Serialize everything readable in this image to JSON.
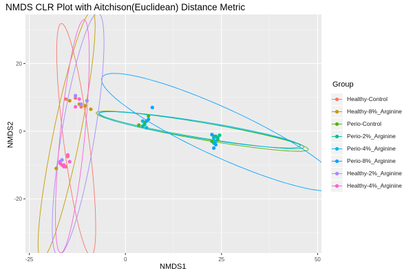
{
  "chart_data": {
    "type": "scatter",
    "title": "NMDS CLR Plot with Aitchison(Euclidean) Distance Metric",
    "xlabel": "NMDS1",
    "ylabel": "NMDS2",
    "xlim": [
      -26,
      51
    ],
    "ylim": [
      -36,
      34.5
    ],
    "xticks": [
      -25,
      0,
      25,
      50
    ],
    "yticks": [
      -20,
      0,
      20
    ],
    "grid": true,
    "legend": {
      "title": "Group",
      "placement": "right"
    },
    "series": [
      {
        "name": "Healthy-Control",
        "color": "#F8766D",
        "points": [
          [
            -15.5,
            9.5
          ],
          [
            -13,
            9.8
          ],
          [
            -11.5,
            7.2
          ],
          [
            -16.5,
            -10
          ],
          [
            -15,
            -7.5
          ],
          [
            -15.5,
            -10.5
          ]
        ],
        "ellipse": {
          "cx": -12.8,
          "cy": -2.5,
          "rx": 30.5,
          "ry": 3.3,
          "angle_deg": 97.3
        }
      },
      {
        "name": "Healthy-8%_Arginine",
        "color": "#C49A00",
        "points": [
          [
            -18,
            -11
          ],
          [
            -12,
            8
          ],
          [
            -10.5,
            7.5
          ],
          [
            -14.5,
            9
          ],
          [
            -9,
            6.5
          ]
        ],
        "ellipse": {
          "cx": -15.3,
          "cy": -1.2,
          "rx": 33,
          "ry": 3.5,
          "angle_deg": 78.5
        }
      },
      {
        "name": "Perio-Control",
        "color": "#53B400",
        "points": [
          [
            6,
            4.5
          ],
          [
            3.5,
            1.8
          ],
          [
            5,
            2.5
          ],
          [
            23,
            -1.5
          ],
          [
            24,
            -2.5
          ],
          [
            22.5,
            -3
          ]
        ],
        "ellipse": {
          "cx": 20,
          "cy": 0,
          "rx": 28,
          "ry": 2.2,
          "angle_deg": -9.8
        }
      },
      {
        "name": "Perio-2%_Arginine",
        "color": "#00C094",
        "points": [
          [
            4.5,
            1.5
          ],
          [
            5,
            2
          ],
          [
            23.5,
            -1.5
          ],
          [
            24,
            -2
          ],
          [
            23,
            -3.5
          ],
          [
            24.5,
            -1.2
          ]
        ],
        "ellipse": {
          "cx": 19.8,
          "cy": 0.3,
          "rx": 27,
          "ry": 2,
          "angle_deg": -9.4
        }
      },
      {
        "name": "Perio-4%_Arginine",
        "color": "#00B6EB",
        "points": [
          [
            4.5,
            3
          ],
          [
            5.5,
            1
          ],
          [
            23,
            -2
          ],
          [
            23.5,
            -3
          ]
        ],
        "ellipse": {
          "cx": 19.3,
          "cy": 0.4,
          "rx": 26.5,
          "ry": 2.2,
          "angle_deg": -9.1
        }
      },
      {
        "name": "Perio-8%_Arginine",
        "color": "#06A4FF",
        "points": [
          [
            7,
            7
          ],
          [
            5.5,
            3
          ],
          [
            6,
            3.5
          ],
          [
            23,
            -5
          ],
          [
            23.5,
            -4
          ],
          [
            22.5,
            -1
          ]
        ],
        "ellipse": {
          "cx": 24.8,
          "cy": -0.3,
          "rx": 34,
          "ry": 6.3,
          "angle_deg": -24.7
        }
      },
      {
        "name": "Healthy-2%_Arginine",
        "color": "#A58AFF",
        "points": [
          [
            -13,
            10.5
          ],
          [
            -11.5,
            8
          ],
          [
            -10,
            9
          ],
          [
            -17,
            -9
          ],
          [
            -16.5,
            -8.5
          ]
        ],
        "ellipse": {
          "cx": -12.3,
          "cy": -1,
          "rx": 32,
          "ry": 4.3,
          "angle_deg": 80.6
        }
      },
      {
        "name": "Healthy-4%_Arginine",
        "color": "#FB61D7",
        "points": [
          [
            -17,
            -9.5
          ],
          [
            -16,
            -10
          ],
          [
            -15,
            -7
          ],
          [
            -14.5,
            -9
          ],
          [
            -16,
            -10.5
          ],
          [
            -13,
            7.2
          ],
          [
            -12,
            9.5
          ]
        ],
        "ellipse": {
          "cx": -13.8,
          "cy": -1.5,
          "rx": 30.5,
          "ry": 3.2,
          "angle_deg": 84.3
        }
      }
    ]
  }
}
